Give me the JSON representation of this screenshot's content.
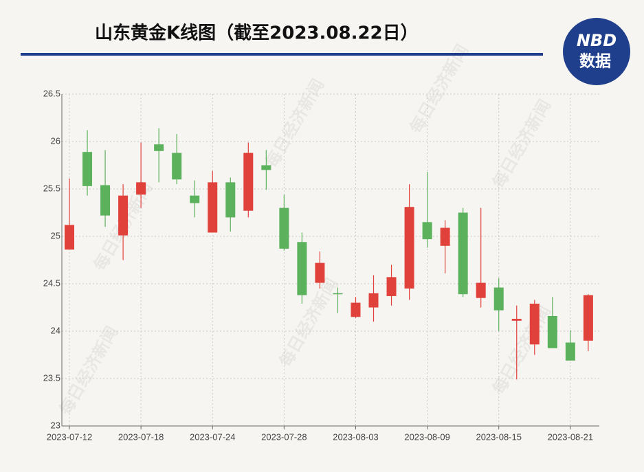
{
  "chart_data": {
    "type": "candlestick",
    "title": "山东黄金K线图（截至2023.08.22日）",
    "logo": {
      "top": "NBD",
      "bottom": "数据"
    },
    "watermark": "每日经济新闻",
    "categories": [
      "2023-07-12",
      null,
      null,
      null,
      "2023-07-18",
      null,
      null,
      null,
      "2023-07-24",
      null,
      null,
      null,
      "2023-07-28",
      null,
      null,
      null,
      "2023-08-03",
      null,
      null,
      null,
      "2023-08-09",
      null,
      null,
      null,
      "2023-08-15",
      null,
      null,
      null,
      "2023-08-21",
      null
    ],
    "open": [
      24.86,
      25.89,
      25.54,
      25.01,
      25.44,
      25.97,
      25.88,
      25.43,
      25.04,
      25.57,
      25.27,
      25.75,
      25.3,
      24.94,
      24.51,
      24.4,
      24.15,
      24.25,
      24.37,
      24.45,
      25.15,
      24.9,
      25.25,
      24.35,
      24.46,
      24.11,
      23.86,
      24.16,
      23.88,
      23.9
    ],
    "high": [
      25.61,
      26.12,
      25.91,
      25.55,
      25.99,
      26.14,
      26.08,
      25.59,
      25.69,
      25.62,
      25.99,
      25.91,
      25.44,
      25.04,
      24.84,
      24.46,
      24.36,
      24.59,
      24.7,
      25.55,
      25.68,
      25.17,
      25.3,
      25.3,
      24.56,
      24.27,
      24.33,
      24.36,
      24.01,
      24.39
    ],
    "low": [
      24.86,
      25.43,
      25.1,
      24.75,
      25.3,
      25.57,
      25.55,
      25.2,
      25.04,
      25.05,
      25.2,
      25.49,
      24.85,
      24.29,
      24.45,
      24.19,
      24.14,
      24.1,
      24.27,
      24.33,
      24.88,
      24.61,
      24.36,
      24.25,
      24.0,
      23.49,
      23.75,
      23.82,
      23.69,
      23.79
    ],
    "close": [
      25.12,
      25.53,
      25.22,
      25.43,
      25.57,
      25.9,
      25.6,
      25.35,
      25.57,
      25.2,
      25.88,
      25.7,
      24.87,
      24.38,
      24.72,
      24.39,
      24.3,
      24.4,
      24.57,
      25.31,
      24.97,
      25.09,
      24.39,
      24.51,
      24.22,
      24.13,
      24.29,
      23.82,
      23.69,
      24.38
    ],
    "up_color": "#e0413a",
    "down_color": "#5bb15c",
    "ylim": [
      23,
      26.5
    ],
    "yticks": [
      23,
      23.5,
      24,
      24.5,
      25,
      25.5,
      26,
      26.5
    ],
    "grid": true
  }
}
